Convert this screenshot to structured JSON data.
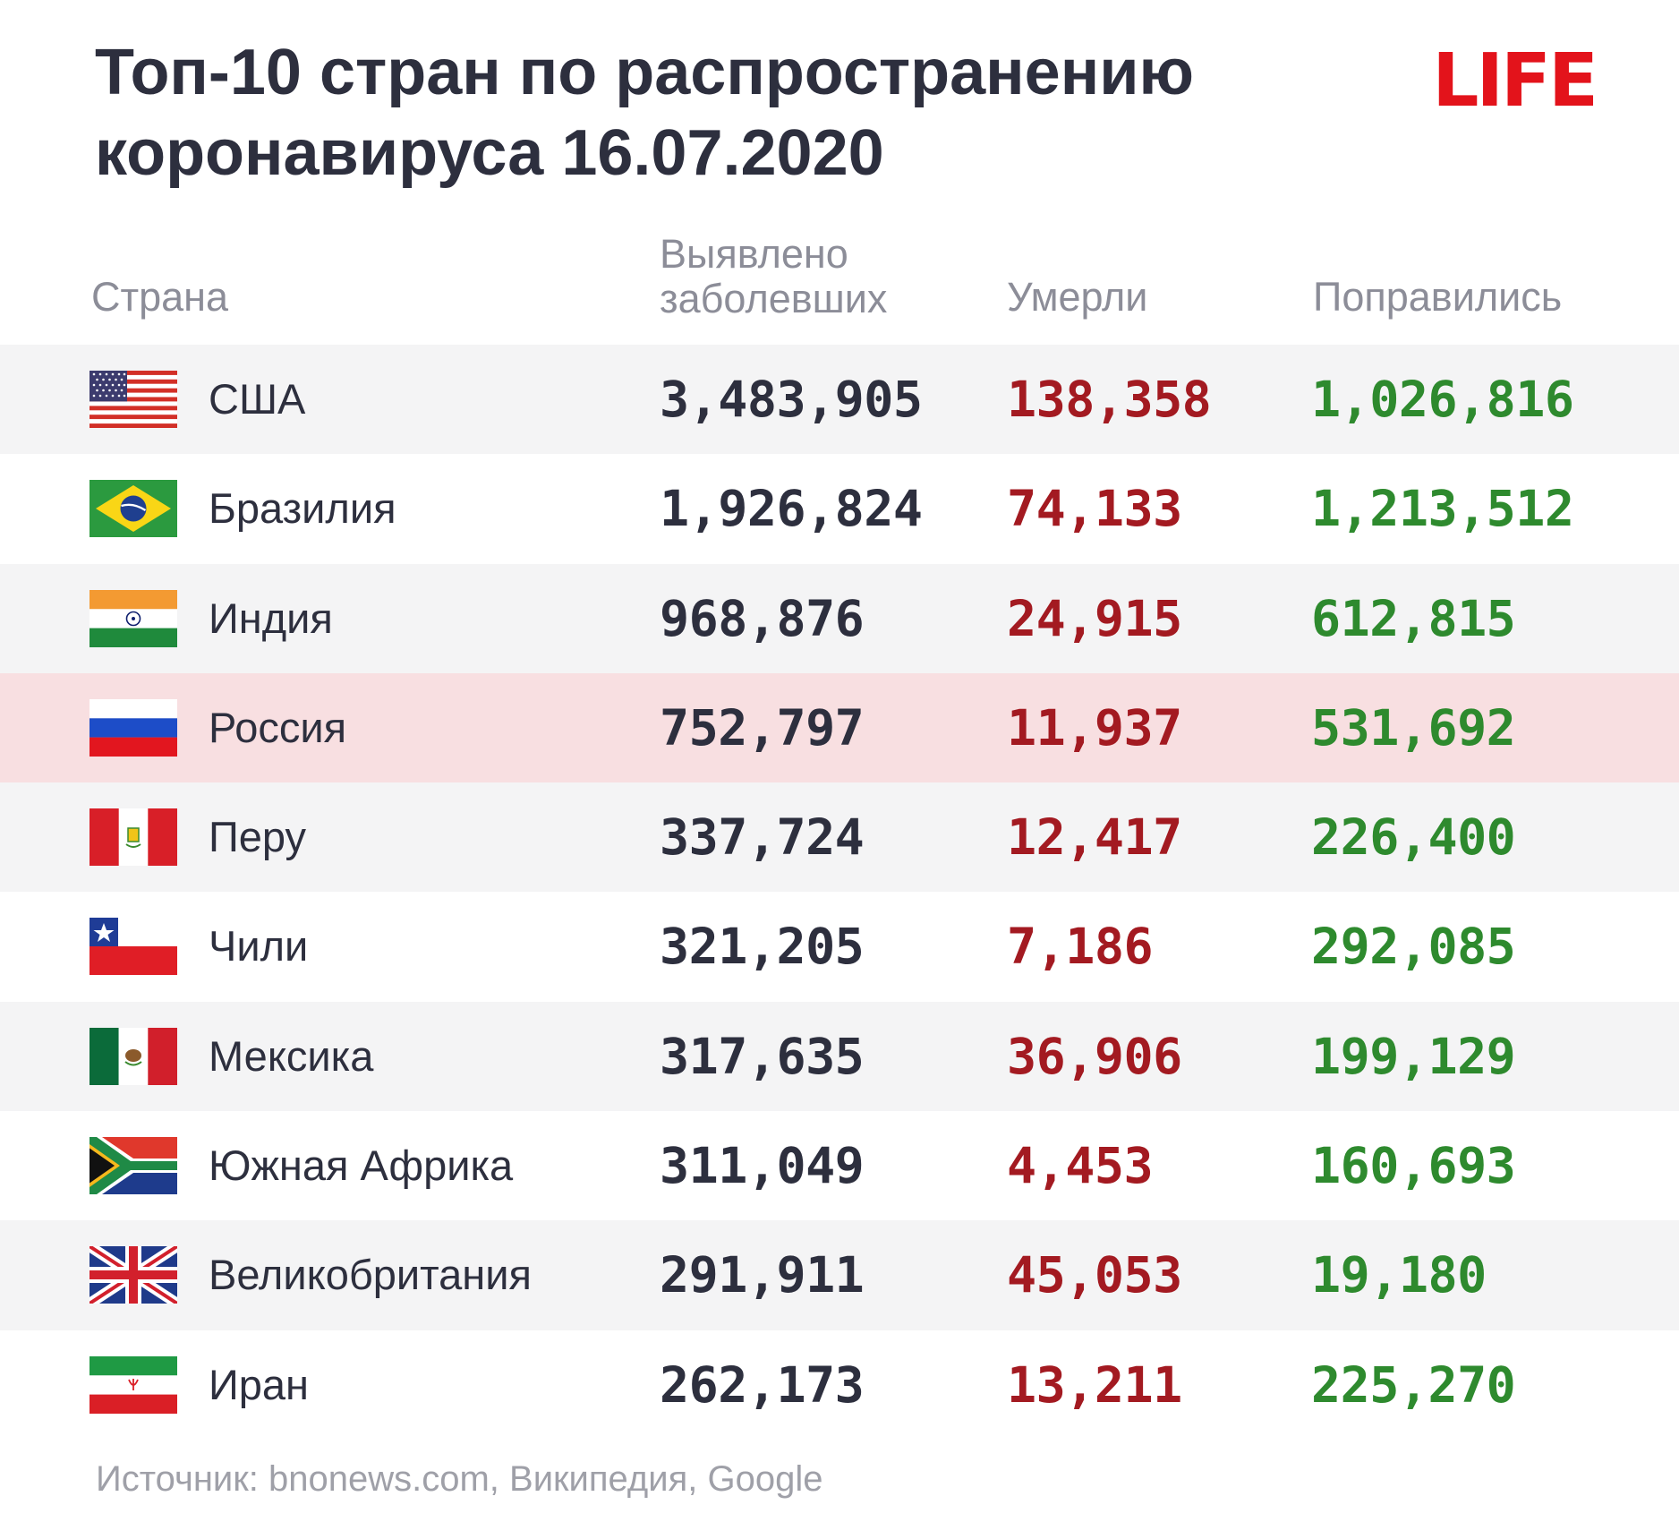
{
  "chart_data": {
    "type": "table",
    "title": "Топ-10 стран по распространению коронавируса 16.07.2020",
    "columns": [
      "Страна",
      "Выявлено заболевших",
      "Умерли",
      "Поправились"
    ],
    "rows": [
      {
        "country": "США",
        "flag": "us-flag",
        "cases": "3,483,905",
        "deaths": "138,358",
        "recovered": "1,026,816"
      },
      {
        "country": "Бразилия",
        "flag": "brazil-flag",
        "cases": "1,926,824",
        "deaths": "74,133",
        "recovered": "1,213,512"
      },
      {
        "country": "Индия",
        "flag": "india-flag",
        "cases": "968,876",
        "deaths": "24,915",
        "recovered": "612,815"
      },
      {
        "country": "Россия",
        "flag": "russia-flag",
        "cases": "752,797",
        "deaths": "11,937",
        "recovered": "531,692",
        "highlighted": true
      },
      {
        "country": "Перу",
        "flag": "peru-flag",
        "cases": "337,724",
        "deaths": "12,417",
        "recovered": "226,400"
      },
      {
        "country": "Чили",
        "flag": "chile-flag",
        "cases": "321,205",
        "deaths": "7,186",
        "recovered": "292,085"
      },
      {
        "country": "Мексика",
        "flag": "mexico-flag",
        "cases": "317,635",
        "deaths": "36,906",
        "recovered": "199,129"
      },
      {
        "country": "Южная Африка",
        "flag": "south-africa-flag",
        "cases": "311,049",
        "deaths": "4,453",
        "recovered": "160,693"
      },
      {
        "country": "Великобритания",
        "flag": "uk-flag",
        "cases": "291,911",
        "deaths": "45,053",
        "recovered": "19,180"
      },
      {
        "country": "Иран",
        "flag": "iran-flag",
        "cases": "262,173",
        "deaths": "13,211",
        "recovered": "225,270"
      }
    ]
  },
  "header": {
    "title": "Топ-10 стран по распространению коронавируса 16.07.2020",
    "logo": "LIFE",
    "col_country": "Страна",
    "col_cases": "Выявлено заболевших",
    "col_deaths": "Умерли",
    "col_recovered": "Поправились"
  },
  "footer": {
    "source": "Источник: bnonews.com, Википедия, Google"
  },
  "colors": {
    "title": "#2d2f3e",
    "logo": "#e3131b",
    "deaths": "#a31a21",
    "recovered": "#2e8a2e",
    "row_alt": "#f4f4f5",
    "row_highlight": "#f8dfe1"
  }
}
